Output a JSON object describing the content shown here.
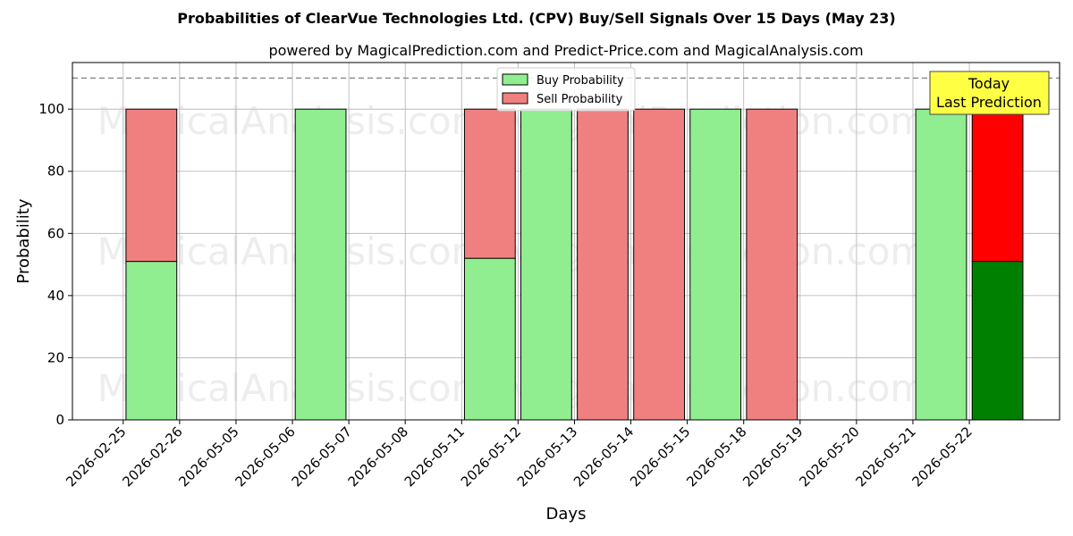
{
  "title": "Probabilities of ClearVue Technologies Ltd. (CPV) Buy/Sell Signals Over 15 Days (May 23)",
  "subtitle": "powered by MagicalPrediction.com and Predict-Price.com and MagicalAnalysis.com",
  "watermarks": [
    "MagicalAnalysis.com",
    "MagicalPrediction.com"
  ],
  "annotation": {
    "line1": "Today",
    "line2": "Last Prediction"
  },
  "colors": {
    "buy": "#90EE90",
    "sell": "#F08080",
    "buy_today": "#008000",
    "sell_today": "#FF0000",
    "annotation_bg": "#FFFF44",
    "grid": "#b0b0b0",
    "reference_line": "#808080"
  },
  "chart_data": {
    "type": "bar",
    "stacked": true,
    "xlabel": "Days",
    "ylabel": "Probability",
    "ylim": [
      0,
      115
    ],
    "yticks": [
      0,
      20,
      40,
      60,
      80,
      100
    ],
    "reference_line": 110,
    "grid": true,
    "legend_position": "top-center",
    "categories": [
      "2026-02-25",
      "2026-02-26",
      "2026-05-05",
      "2026-05-06",
      "2026-05-07",
      "2026-05-08",
      "2026-05-11",
      "2026-05-12",
      "2026-05-13",
      "2026-05-14",
      "2026-05-15",
      "2026-05-18",
      "2026-05-19",
      "2026-05-20",
      "2026-05-21",
      "2026-05-22"
    ],
    "x_positions": [
      0,
      1,
      2,
      3,
      4,
      5,
      6,
      7,
      8,
      9,
      10,
      11,
      12,
      13,
      14,
      15
    ],
    "bars": [
      {
        "x": 0.5,
        "buy": 51,
        "sell": 49
      },
      {
        "x": 3.5,
        "buy": 100,
        "sell": 0
      },
      {
        "x": 6.5,
        "buy": 52,
        "sell": 48
      },
      {
        "x": 7.5,
        "buy": 100,
        "sell": 0
      },
      {
        "x": 8.5,
        "buy": 0,
        "sell": 100
      },
      {
        "x": 9.5,
        "buy": 0,
        "sell": 100
      },
      {
        "x": 10.5,
        "buy": 100,
        "sell": 0
      },
      {
        "x": 11.5,
        "buy": 0,
        "sell": 100
      },
      {
        "x": 14.5,
        "buy": 100,
        "sell": 0
      },
      {
        "x": 15.5,
        "buy": 51,
        "sell": 49,
        "today": true
      }
    ],
    "series": [
      {
        "name": "Buy Probability"
      },
      {
        "name": "Sell Probability"
      }
    ]
  }
}
